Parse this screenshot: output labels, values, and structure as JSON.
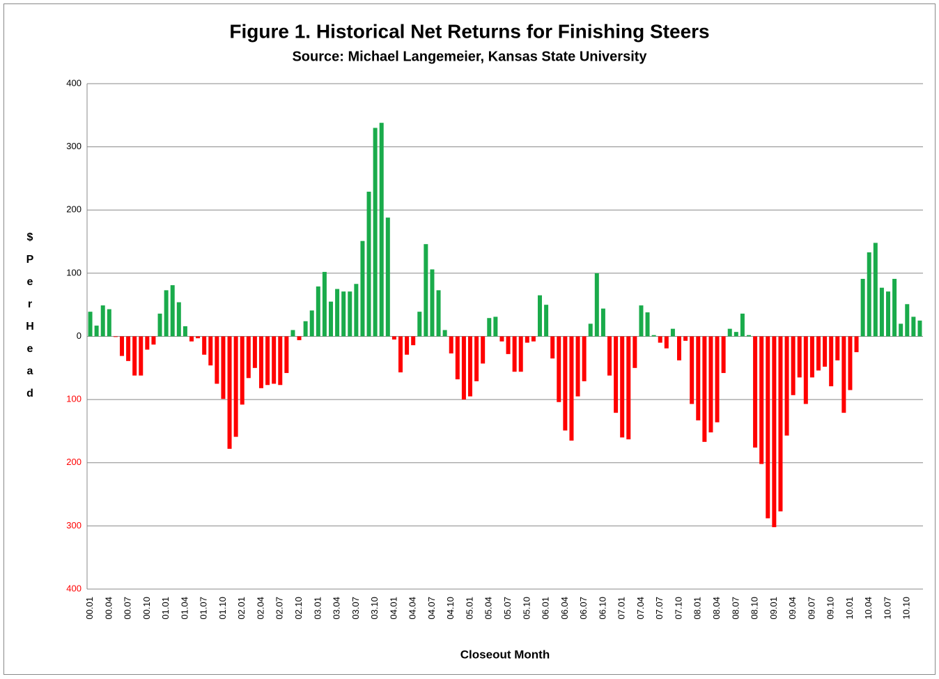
{
  "chart_data": {
    "type": "bar",
    "title": "Figure 1.  Historical Net Returns for Finishing Steers",
    "subtitle": "Source:  Michael Langemeier, Kansas State University",
    "xlabel": "Closeout Month",
    "ylabel": "$ Per Head",
    "categories": [
      "00.01",
      null,
      null,
      "00.04",
      null,
      null,
      "00.07",
      null,
      null,
      "00.10",
      null,
      null,
      "01.01",
      null,
      null,
      "01.04",
      null,
      null,
      "01.07",
      null,
      null,
      "01.10",
      null,
      null,
      "02.01",
      null,
      null,
      "02.04",
      null,
      null,
      "02.07",
      null,
      null,
      "02.10",
      null,
      null,
      "03.01",
      null,
      null,
      "03.04",
      null,
      null,
      "03.07",
      null,
      null,
      "03.10",
      null,
      null,
      "04.01",
      null,
      null,
      "04.04",
      null,
      null,
      "04.07",
      null,
      null,
      "04.10",
      null,
      null,
      "05.01",
      null,
      null,
      "05.04",
      null,
      null,
      "05.07",
      null,
      null,
      "05.10",
      null,
      null,
      "06.01",
      null,
      null,
      "06.04",
      null,
      null,
      "06.07",
      null,
      null,
      "06.10",
      null,
      null,
      "07.01",
      null,
      null,
      "07.04",
      null,
      null,
      "07.07",
      null,
      null,
      "07.10",
      null,
      null,
      "08.01",
      null,
      null,
      "08.04",
      null,
      null,
      "08.07",
      null,
      null,
      "08.10",
      null,
      null,
      "09.01",
      null,
      null,
      "09.04",
      null,
      null,
      "09.07",
      null,
      null,
      "09.10",
      null,
      null,
      "10.01",
      null,
      null,
      "10.04",
      null,
      null,
      "10.07",
      null,
      null,
      "10.10",
      null,
      null
    ],
    "values": [
      39,
      17,
      49,
      43,
      -1,
      -31,
      -39,
      -62,
      -62,
      -21,
      -13,
      36,
      73,
      81,
      54,
      16,
      -8,
      -3,
      -29,
      -46,
      -75,
      -99,
      -178,
      -159,
      -108,
      -66,
      -50,
      -82,
      -77,
      -75,
      -77,
      -58,
      10,
      -6,
      24,
      41,
      79,
      102,
      55,
      75,
      71,
      71,
      83,
      151,
      229,
      330,
      338,
      188,
      -5,
      -57,
      -29,
      -14,
      39,
      146,
      106,
      73,
      10,
      -27,
      -68,
      -100,
      -95,
      -71,
      -43,
      29,
      31,
      -8,
      -28,
      -56,
      -56,
      -10,
      -8,
      65,
      50,
      -35,
      -104,
      -149,
      -165,
      -95,
      -71,
      20,
      100,
      44,
      -62,
      -121,
      -160,
      -163,
      -50,
      49,
      38,
      2,
      -10,
      -19,
      12,
      -38,
      -7,
      -107,
      -133,
      -167,
      -152,
      -136,
      -58,
      12,
      7,
      36,
      2,
      -176,
      -202,
      -288,
      -302,
      -277,
      -157,
      -93,
      -65,
      -107,
      -65,
      -54,
      -48,
      -79,
      -38,
      -121,
      -85,
      -25,
      91,
      133,
      148,
      77,
      71,
      91,
      20,
      51,
      31,
      25
    ],
    "positive_color": "#1aab4b",
    "negative_color": "#ff0000",
    "ylim": [
      -400,
      400
    ],
    "yticks": [
      {
        "value": -400,
        "label": "400"
      },
      {
        "value": -300,
        "label": "300"
      },
      {
        "value": -200,
        "label": "200"
      },
      {
        "value": -100,
        "label": "100"
      },
      0,
      100,
      200,
      300,
      400
    ],
    "grid": true
  }
}
